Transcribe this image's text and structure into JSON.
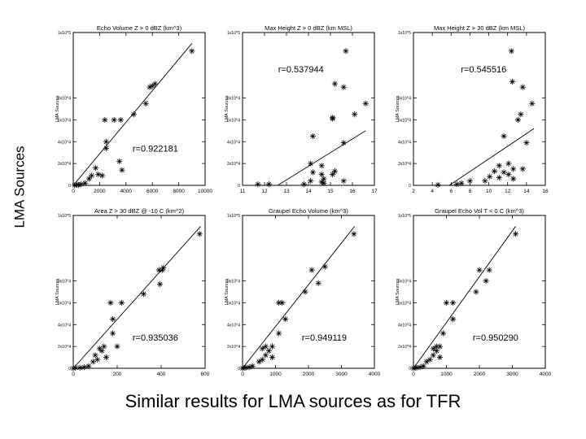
{
  "figure": {
    "ylabel": "LMA Sources",
    "caption": "Similar results for LMA sources as for TFR"
  },
  "chart_data": [
    {
      "type": "scatter",
      "title": "Echo Volume Z > 0 dBZ (km^3)",
      "ylabel": "LMA Sources",
      "xlim": [
        0,
        10000
      ],
      "xticks": [
        "0",
        "2000",
        "4000",
        "6000",
        "8000",
        "10000"
      ],
      "ylim": [
        0,
        14
      ],
      "yticks": [
        "0",
        "2x10^4",
        "4x10^4",
        "6x10^4",
        "8x10^4",
        "1x10^5"
      ],
      "annotation": "r=0.922181",
      "fit_line": [
        [
          0,
          0
        ],
        [
          9000,
          13.0
        ]
      ],
      "points": [
        [
          9000,
          12.3
        ],
        [
          5800,
          9.0
        ],
        [
          6200,
          9.3
        ],
        [
          6000,
          9.1
        ],
        [
          5500,
          7.5
        ],
        [
          4600,
          6.5
        ],
        [
          3600,
          6.0
        ],
        [
          3100,
          6.0
        ],
        [
          2400,
          6.0
        ],
        [
          2500,
          4.0
        ],
        [
          2500,
          3.4
        ],
        [
          3500,
          2.2
        ],
        [
          3700,
          1.4
        ],
        [
          1700,
          1.6
        ],
        [
          1900,
          1.0
        ],
        [
          2200,
          0.9
        ],
        [
          1400,
          0.9
        ],
        [
          1200,
          0.6
        ],
        [
          900,
          0.2
        ],
        [
          600,
          0.1
        ],
        [
          400,
          0.05
        ],
        [
          300,
          0.05
        ],
        [
          100,
          0
        ]
      ]
    },
    {
      "type": "scatter",
      "title": "Max Height Z > 0 dBZ (km MSL)",
      "ylabel": "LMA Sources",
      "xlim": [
        11,
        17
      ],
      "xticks": [
        "11",
        "12",
        "13",
        "14",
        "15",
        "16",
        "17"
      ],
      "ylim": [
        0,
        14
      ],
      "yticks": [
        "0",
        "2x10^4",
        "4x10^4",
        "6x10^4",
        "8x10^4",
        "1x10^5"
      ],
      "annotation": "r=0.537944",
      "fit_line": [
        [
          12.6,
          0
        ],
        [
          16.6,
          5.0
        ]
      ],
      "points": [
        [
          15.7,
          12.3
        ],
        [
          15.2,
          9.3
        ],
        [
          15.6,
          9.0
        ],
        [
          16.6,
          7.5
        ],
        [
          16.1,
          6.5
        ],
        [
          15.1,
          6.2
        ],
        [
          15.1,
          6.1
        ],
        [
          14.2,
          4.5
        ],
        [
          15.6,
          3.9
        ],
        [
          14.1,
          2.0
        ],
        [
          14.6,
          1.8
        ],
        [
          15.2,
          1.3
        ],
        [
          14.2,
          1.2
        ],
        [
          14.6,
          1.0
        ],
        [
          15.1,
          1.0
        ],
        [
          14.7,
          0.6
        ],
        [
          15.6,
          0.4
        ],
        [
          14.1,
          0.4
        ],
        [
          14.6,
          0.3
        ],
        [
          12.2,
          0.1
        ],
        [
          11.7,
          0.1
        ],
        [
          14.7,
          0.2
        ],
        [
          13.8,
          0.1
        ]
      ]
    },
    {
      "type": "scatter",
      "title": "Max Height Z > 30 dBZ (km MSL)",
      "ylabel": "LMA Sources",
      "xlim": [
        2,
        16
      ],
      "xticks": [
        "2",
        "4",
        "6",
        "8",
        "10",
        "12",
        "14",
        "16"
      ],
      "ylim": [
        0,
        14
      ],
      "yticks": [
        "0",
        "2x10^4",
        "4x10^4",
        "6x10^4",
        "8x10^4",
        "1x10^5"
      ],
      "annotation": "r=0.545516",
      "fit_line": [
        [
          5.8,
          0
        ],
        [
          14.8,
          5.2
        ]
      ],
      "points": [
        [
          12.4,
          12.3
        ],
        [
          12.5,
          9.5
        ],
        [
          13.6,
          9.0
        ],
        [
          14.6,
          7.5
        ],
        [
          13.4,
          6.5
        ],
        [
          13.1,
          6.0
        ],
        [
          11.6,
          4.5
        ],
        [
          14.0,
          3.9
        ],
        [
          12.1,
          2.0
        ],
        [
          11.1,
          1.8
        ],
        [
          12.6,
          1.5
        ],
        [
          10.6,
          1.3
        ],
        [
          11.6,
          1.2
        ],
        [
          12.1,
          1.0
        ],
        [
          10.1,
          0.8
        ],
        [
          11.1,
          0.7
        ],
        [
          12.6,
          0.6
        ],
        [
          13.6,
          1.5
        ],
        [
          8.0,
          0.4
        ],
        [
          9.6,
          0.4
        ],
        [
          6.6,
          0.1
        ],
        [
          4.6,
          0.05
        ],
        [
          7.1,
          0.2
        ]
      ]
    },
    {
      "type": "scatter",
      "title": "Area Z > 30 dBZ @ -10 C (km^2)",
      "ylabel": "LMA Sources",
      "xlim": [
        0,
        600
      ],
      "xticks": [
        "0",
        "200",
        "400",
        "600"
      ],
      "ylim": [
        0,
        14
      ],
      "yticks": [
        "0",
        "2x10^4",
        "4x10^4",
        "6x10^4",
        "8x10^4",
        "1x10^5"
      ],
      "annotation": "r=0.935036",
      "fit_line": [
        [
          0,
          0
        ],
        [
          580,
          13.0
        ]
      ],
      "points": [
        [
          575,
          12.3
        ],
        [
          390,
          9.0
        ],
        [
          410,
          9.2
        ],
        [
          405,
          9.0
        ],
        [
          395,
          7.7
        ],
        [
          320,
          6.8
        ],
        [
          170,
          6.0
        ],
        [
          220,
          6.0
        ],
        [
          180,
          4.5
        ],
        [
          180,
          3.2
        ],
        [
          200,
          2.0
        ],
        [
          140,
          2.0
        ],
        [
          120,
          1.8
        ],
        [
          130,
          1.6
        ],
        [
          100,
          1.2
        ],
        [
          150,
          1.0
        ],
        [
          110,
          0.8
        ],
        [
          90,
          0.6
        ],
        [
          70,
          0.2
        ],
        [
          50,
          0.1
        ],
        [
          30,
          0.05
        ],
        [
          10,
          0.05
        ],
        [
          0,
          0
        ]
      ]
    },
    {
      "type": "scatter",
      "title": "Graupel Echo Volume (km^3)",
      "ylabel": "LMA Sources",
      "xlim": [
        0,
        4000
      ],
      "xticks": [
        "0",
        "1000",
        "2000",
        "3000",
        "4000"
      ],
      "ylim": [
        0,
        14
      ],
      "yticks": [
        "0",
        "2x10^4",
        "4x10^4",
        "6x10^4",
        "8x10^4",
        "1x10^5"
      ],
      "annotation": "r=0.949119",
      "fit_line": [
        [
          0,
          0
        ],
        [
          3400,
          13.0
        ]
      ],
      "points": [
        [
          3380,
          12.3
        ],
        [
          2100,
          9.0
        ],
        [
          2500,
          9.3
        ],
        [
          2300,
          7.8
        ],
        [
          1900,
          7.0
        ],
        [
          1100,
          6.0
        ],
        [
          1200,
          6.0
        ],
        [
          1300,
          4.5
        ],
        [
          1100,
          3.2
        ],
        [
          900,
          2.0
        ],
        [
          700,
          2.0
        ],
        [
          600,
          1.8
        ],
        [
          800,
          1.6
        ],
        [
          700,
          1.2
        ],
        [
          900,
          1.0
        ],
        [
          600,
          0.8
        ],
        [
          500,
          0.6
        ],
        [
          300,
          0.2
        ],
        [
          200,
          0.1
        ],
        [
          100,
          0.05
        ],
        [
          50,
          0.05
        ],
        [
          0,
          0
        ]
      ]
    },
    {
      "type": "scatter",
      "title": "Graupel Echo Vol T < 0 C (km^3)",
      "ylabel": "LMA Sources",
      "xlim": [
        0,
        4000
      ],
      "xticks": [
        "0",
        "1000",
        "2000",
        "3000",
        "4000"
      ],
      "ylim": [
        0,
        14
      ],
      "yticks": [
        "0",
        "2x10^4",
        "4x10^4",
        "6x10^4",
        "8x10^4",
        "1x10^5"
      ],
      "annotation": "r=0.950290",
      "fit_line": [
        [
          0,
          0
        ],
        [
          3100,
          13.0
        ]
      ],
      "points": [
        [
          3100,
          12.3
        ],
        [
          2000,
          9.0
        ],
        [
          2300,
          9.0
        ],
        [
          2200,
          8.0
        ],
        [
          1900,
          7.0
        ],
        [
          1200,
          6.0
        ],
        [
          1000,
          6.0
        ],
        [
          1200,
          4.5
        ],
        [
          900,
          3.2
        ],
        [
          800,
          2.0
        ],
        [
          700,
          2.0
        ],
        [
          600,
          1.8
        ],
        [
          700,
          1.6
        ],
        [
          600,
          1.2
        ],
        [
          800,
          1.0
        ],
        [
          500,
          0.8
        ],
        [
          400,
          0.6
        ],
        [
          300,
          0.2
        ],
        [
          200,
          0.1
        ],
        [
          100,
          0.05
        ],
        [
          50,
          0.05
        ],
        [
          0,
          0
        ]
      ]
    }
  ]
}
